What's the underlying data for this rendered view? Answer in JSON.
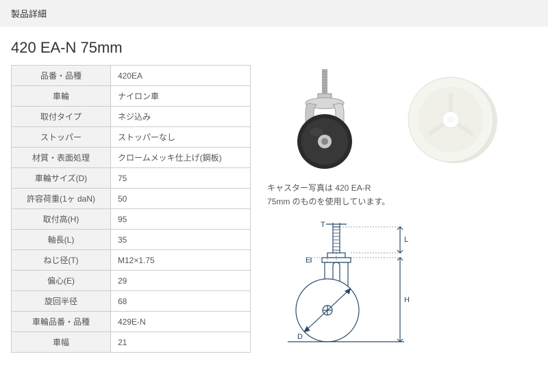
{
  "header": {
    "label": "製品詳細"
  },
  "product": {
    "title": "420 EA-N 75mm"
  },
  "table": {
    "rows": [
      {
        "label": "品番・品種",
        "value": "420EA"
      },
      {
        "label": "車輪",
        "value": "ナイロン車"
      },
      {
        "label": "取付タイプ",
        "value": "ネジ込み"
      },
      {
        "label": "ストッパー",
        "value": "ストッパーなし"
      },
      {
        "label": "材質・表面処理",
        "value": "クロームメッキ仕上げ(鋼板)"
      },
      {
        "label": "車輪サイズ(D)",
        "value": "75"
      },
      {
        "label": "許容荷重(1ヶ daN)",
        "value": "50"
      },
      {
        "label": "取付高(H)",
        "value": "95"
      },
      {
        "label": "軸長(L)",
        "value": "35"
      },
      {
        "label": "ねじ径(T)",
        "value": "M12×1.75"
      },
      {
        "label": "偏心(E)",
        "value": "29"
      },
      {
        "label": "旋回半径",
        "value": "68"
      },
      {
        "label": "車輪品番・品種",
        "value": "429E-N"
      },
      {
        "label": "車幅",
        "value": "21"
      }
    ]
  },
  "images": {
    "caption_line1": "キャスター写真は 420 EA-R",
    "caption_line2": "75mm のものを使用しています。",
    "caster_colors": {
      "wheel": "#2b2b2b",
      "bracket": "#c8c8c8",
      "stem": "#b0b0b0",
      "highlight": "#e8e8e8"
    },
    "nylon_wheel_colors": {
      "body": "#f5f5f0",
      "shadow": "#e8e8e0",
      "hub": "#ffffff"
    },
    "diagram_colors": {
      "line": "#2a4a6a",
      "fill": "#ffffff"
    },
    "diagram_labels": {
      "T": "T",
      "L": "L",
      "H": "H",
      "E": "E",
      "D": "D"
    }
  },
  "styling": {
    "header_bg": "#f2f2f2",
    "table_header_bg": "#f2f2f2",
    "border_color": "#cccccc",
    "text_color": "#555555",
    "title_fontsize": 22,
    "body_fontsize": 12
  }
}
